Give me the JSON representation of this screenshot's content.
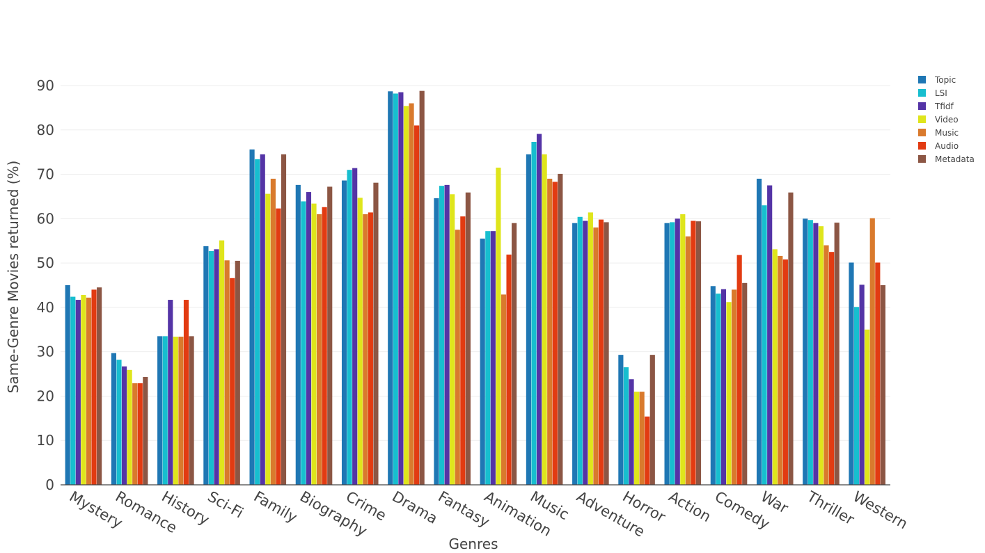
{
  "chart_data": {
    "type": "bar",
    "title": "",
    "xlabel": "Genres",
    "ylabel": "Same-Genre Movies returned (%)",
    "ylim": [
      0,
      90
    ],
    "yticks": [
      0,
      10,
      20,
      30,
      40,
      50,
      60,
      70,
      80,
      90
    ],
    "grid": true,
    "legend_position": "top-right",
    "categories": [
      "Mystery",
      "Romance",
      "History",
      "Sci-Fi",
      "Family",
      "Biography",
      "Crime",
      "Drama",
      "Fantasy",
      "Animation",
      "Music",
      "Adventure",
      "Horror",
      "Action",
      "Comedy",
      "War",
      "Thriller",
      "Western"
    ],
    "series": [
      {
        "name": "Topic",
        "color": "#1f77b4",
        "values": [
          45.0,
          29.7,
          33.5,
          53.8,
          75.6,
          67.6,
          68.6,
          88.7,
          64.6,
          55.5,
          74.5,
          59.0,
          29.3,
          59.0,
          44.8,
          69.0,
          60.0,
          50.1
        ]
      },
      {
        "name": "LSI",
        "color": "#17becf",
        "values": [
          42.4,
          28.2,
          33.5,
          52.7,
          73.4,
          63.9,
          71.0,
          88.2,
          67.4,
          57.2,
          77.3,
          60.4,
          26.5,
          59.2,
          43.1,
          63.0,
          59.7,
          40.1
        ]
      },
      {
        "name": "Tfidf",
        "color": "#5434a6",
        "values": [
          41.7,
          26.7,
          41.7,
          53.1,
          74.5,
          66.0,
          71.4,
          88.5,
          67.6,
          57.2,
          79.1,
          59.5,
          23.8,
          60.0,
          44.1,
          67.5,
          59.0,
          45.1
        ]
      },
      {
        "name": "Video",
        "color": "#dfe51c",
        "values": [
          42.8,
          25.9,
          33.4,
          55.1,
          65.6,
          63.4,
          64.7,
          85.4,
          65.5,
          71.5,
          74.5,
          61.4,
          21.0,
          61.0,
          41.2,
          53.1,
          58.3,
          35.0
        ]
      },
      {
        "name": "Music",
        "color": "#d97a2d",
        "values": [
          42.2,
          22.9,
          33.4,
          50.6,
          69.0,
          61.0,
          61.0,
          86.0,
          57.5,
          42.9,
          69.0,
          58.0,
          21.0,
          56.0,
          44.0,
          51.6,
          54.0,
          60.1
        ]
      },
      {
        "name": "Audio",
        "color": "#e23b12",
        "values": [
          44.0,
          22.9,
          41.7,
          46.6,
          62.3,
          62.6,
          61.4,
          81.0,
          60.5,
          51.9,
          68.3,
          59.8,
          15.4,
          59.5,
          51.8,
          50.8,
          52.5,
          50.1
        ]
      },
      {
        "name": "Metadata",
        "color": "#8c5644",
        "values": [
          44.5,
          24.3,
          33.5,
          50.5,
          74.5,
          67.2,
          68.1,
          88.8,
          65.9,
          59.0,
          70.1,
          59.2,
          29.3,
          59.4,
          45.5,
          65.9,
          59.1,
          45.0
        ]
      }
    ]
  }
}
